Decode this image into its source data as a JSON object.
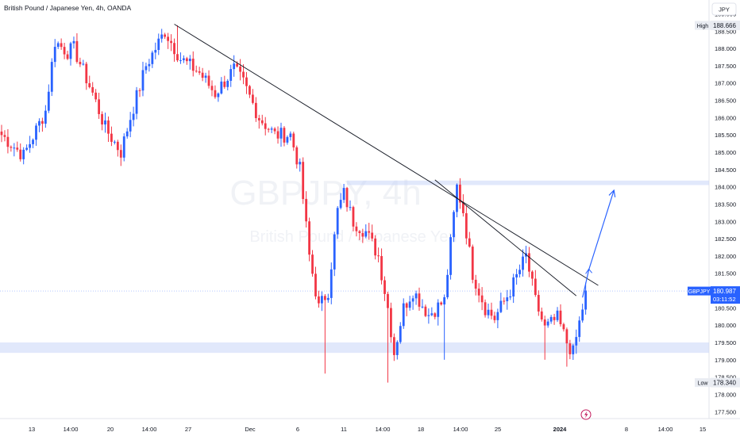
{
  "header": {
    "symbol_title": "British Pound / Japanese Yen, 4h, OANDA"
  },
  "watermark": {
    "ticker": "GBPJPY, 4h",
    "name": "British Pound / Japanese Yen"
  },
  "currency_button": "JPY",
  "price_axis": {
    "ticks": [
      "189.000",
      "188.500",
      "188.000",
      "187.500",
      "187.000",
      "186.500",
      "186.000",
      "185.500",
      "185.000",
      "184.500",
      "184.000",
      "183.500",
      "183.000",
      "182.500",
      "182.000",
      "181.500",
      "181.000",
      "180.500",
      "180.000",
      "179.500",
      "179.000",
      "178.500",
      "178.000",
      "177.500"
    ]
  },
  "time_axis": {
    "labels": [
      "13",
      "14:00",
      "20",
      "14:00",
      "27",
      "Dec",
      "6",
      "11",
      "14:00",
      "18",
      "14:00",
      "25",
      "2024",
      "8",
      "14:00",
      "15"
    ]
  },
  "badges": {
    "high_label": "High",
    "high_value": "188.666",
    "low_label": "Low",
    "low_value": "178.340",
    "symbol": "GBPJPY",
    "last_price": "180.987",
    "countdown": "03:11:52"
  },
  "colors": {
    "up": "#2962ff",
    "down": "#f23645",
    "zone": "#c9d6f7",
    "trendline": "#131722",
    "projection": "#2962ff"
  },
  "chart_data": {
    "type": "candlestick",
    "title": "British Pound / Japanese Yen, 4h, OANDA",
    "symbol": "GBPJPY",
    "timeframe": "4h",
    "ylim": [
      177.3,
      189.4
    ],
    "x_tick_labels": [
      "13",
      "14:00",
      "20",
      "14:00",
      "27",
      "Dec",
      "6",
      "11",
      "14:00",
      "18",
      "14:00",
      "25",
      "2024",
      "8",
      "14:00",
      "15"
    ],
    "anchors": [
      {
        "t": 0,
        "p": 185.5
      },
      {
        "t": 7,
        "p": 184.9
      },
      {
        "t": 14,
        "p": 186.2
      },
      {
        "t": 17,
        "p": 188.2
      },
      {
        "t": 21,
        "p": 187.9
      },
      {
        "t": 23,
        "p": 188.0
      },
      {
        "t": 29,
        "p": 186.7
      },
      {
        "t": 33,
        "p": 185.7
      },
      {
        "t": 38,
        "p": 185.0
      },
      {
        "t": 41,
        "p": 186.0
      },
      {
        "t": 46,
        "p": 187.5
      },
      {
        "t": 52,
        "p": 188.5
      },
      {
        "t": 57,
        "p": 187.7
      },
      {
        "t": 63,
        "p": 187.3
      },
      {
        "t": 68,
        "p": 186.7
      },
      {
        "t": 74,
        "p": 187.4
      },
      {
        "t": 77,
        "p": 187.0
      },
      {
        "t": 82,
        "p": 186.0
      },
      {
        "t": 87,
        "p": 185.5
      },
      {
        "t": 92,
        "p": 185.5
      },
      {
        "t": 95,
        "p": 184.5
      },
      {
        "t": 98,
        "p": 182.0
      },
      {
        "t": 101,
        "p": 180.5
      },
      {
        "t": 104,
        "p": 181.0
      },
      {
        "t": 107,
        "p": 183.3
      },
      {
        "t": 109,
        "p": 183.8
      },
      {
        "t": 112,
        "p": 183.0
      },
      {
        "t": 116,
        "p": 182.7
      },
      {
        "t": 120,
        "p": 182.0
      },
      {
        "t": 123,
        "p": 180.5
      },
      {
        "t": 125,
        "p": 179.2
      },
      {
        "t": 128,
        "p": 180.5
      },
      {
        "t": 131,
        "p": 181.0
      },
      {
        "t": 136,
        "p": 180.3
      },
      {
        "t": 141,
        "p": 180.7
      },
      {
        "t": 145,
        "p": 184.0
      },
      {
        "t": 147,
        "p": 183.3
      },
      {
        "t": 150,
        "p": 181.5
      },
      {
        "t": 154,
        "p": 180.5
      },
      {
        "t": 157,
        "p": 180.2
      },
      {
        "t": 162,
        "p": 181.0
      },
      {
        "t": 167,
        "p": 182.0
      },
      {
        "t": 170,
        "p": 180.7
      },
      {
        "t": 173,
        "p": 179.9
      },
      {
        "t": 177,
        "p": 180.2
      },
      {
        "t": 180,
        "p": 179.5
      },
      {
        "t": 182,
        "p": 179.2
      },
      {
        "t": 185,
        "p": 180.5
      },
      {
        "t": 186,
        "p": 181.0
      }
    ],
    "extremes": [
      {
        "t": 56,
        "high": 188.666
      },
      {
        "t": 123,
        "low": 178.34
      }
    ],
    "horizontal_zones": [
      {
        "from": 184.05,
        "to": 184.18
      },
      {
        "from": 179.2,
        "to": 179.5
      }
    ],
    "trendlines": [
      {
        "from": {
          "t": 55,
          "p": 188.7
        },
        "to": {
          "t": 190,
          "p": 181.15
        }
      },
      {
        "from": {
          "t": 138,
          "p": 184.2
        },
        "to": {
          "t": 183,
          "p": 180.85
        }
      }
    ],
    "projection": {
      "from": {
        "t": 185,
        "p": 180.8
      },
      "via": {
        "t": 187,
        "p": 181.6
      },
      "to": {
        "t": 195,
        "p": 183.9
      }
    },
    "last_price": 180.987,
    "high": 188.666,
    "low": 178.34
  }
}
